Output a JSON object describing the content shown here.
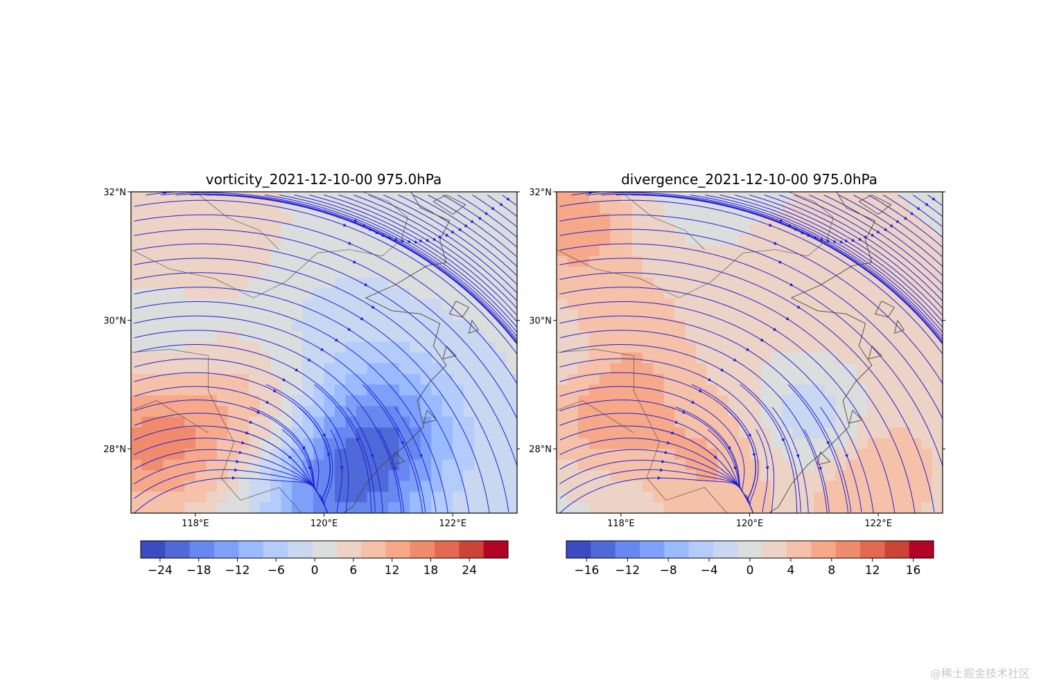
{
  "watermark": "@稀土掘金技术社区",
  "colormap": [
    "#3b4cc0",
    "#4f69d9",
    "#6788ee",
    "#7fa0f9",
    "#9abbff",
    "#b3ccfb",
    "#c9d7f0",
    "#dcdddd",
    "#ecd3c5",
    "#f5c1a9",
    "#f7a889",
    "#f08b6e",
    "#e26952",
    "#cc4437",
    "#b40426"
  ],
  "stream_color": "#1f1fd6",
  "coast_color": "#444444",
  "chart_data": [
    {
      "type": "heatmap",
      "variant": "map-with-streamlines",
      "title": "vorticity_2021-12-10-00  975.0hPa",
      "lon_range": [
        117.0,
        123.0
      ],
      "lat_range": [
        27.0,
        32.0
      ],
      "x_ticks": [
        118,
        120,
        122
      ],
      "x_tick_labels": [
        "118°E",
        "120°E",
        "122°E"
      ],
      "y_ticks": [
        28,
        30,
        32
      ],
      "y_tick_labels": [
        "28°N",
        "30°N",
        "32°N"
      ],
      "colorbar": {
        "range": [
          -27,
          30
        ],
        "ticks": [
          -24,
          -18,
          -12,
          -6,
          0,
          6,
          12,
          18,
          24
        ],
        "tick_labels": [
          "−24",
          "−18",
          "−12",
          "−6",
          "0",
          "6",
          "12",
          "18",
          "24"
        ]
      },
      "features": [
        {
          "lon": 118.0,
          "lat": 30.4,
          "value": 9,
          "spread": 1.6
        },
        {
          "lon": 117.3,
          "lat": 28.1,
          "value": 14,
          "spread": 0.9
        },
        {
          "lon": 119.2,
          "lat": 28.7,
          "value": 10,
          "spread": 0.9
        },
        {
          "lon": 120.2,
          "lat": 27.4,
          "value": -18,
          "spread": 0.9
        },
        {
          "lon": 121.0,
          "lat": 28.3,
          "value": -13,
          "spread": 0.8
        },
        {
          "lon": 119.5,
          "lat": 29.6,
          "value": -9,
          "spread": 1.0
        },
        {
          "lon": 117.5,
          "lat": 29.7,
          "value": -8,
          "spread": 0.8
        }
      ]
    },
    {
      "type": "heatmap",
      "variant": "map-with-streamlines",
      "title": "divergence_2021-12-10-00  975.0hPa",
      "lon_range": [
        117.0,
        123.0
      ],
      "lat_range": [
        27.0,
        32.0
      ],
      "x_ticks": [
        118,
        120,
        122
      ],
      "x_tick_labels": [
        "118°E",
        "120°E",
        "122°E"
      ],
      "y_ticks": [
        28,
        30,
        32
      ],
      "y_tick_labels": [
        "28°N",
        "30°N",
        "32°N"
      ],
      "colorbar": {
        "range": [
          -18,
          18
        ],
        "ticks": [
          -16,
          -12,
          -8,
          -4,
          0,
          4,
          8,
          12,
          16
        ],
        "tick_labels": [
          "−16",
          "−12",
          "−8",
          "−4",
          "0",
          "4",
          "8",
          "12",
          "16"
        ]
      },
      "features": [
        {
          "lon": 117.3,
          "lat": 31.6,
          "value": 7,
          "spread": 0.6
        },
        {
          "lon": 117.8,
          "lat": 29.7,
          "value": 6,
          "spread": 1.0
        },
        {
          "lon": 117.6,
          "lat": 28.6,
          "value": 6,
          "spread": 0.7
        },
        {
          "lon": 119.5,
          "lat": 27.7,
          "value": 6,
          "spread": 0.9
        },
        {
          "lon": 121.8,
          "lat": 27.6,
          "value": 7,
          "spread": 0.9
        },
        {
          "lon": 121.0,
          "lat": 28.3,
          "value": -7,
          "spread": 0.7
        },
        {
          "lon": 117.3,
          "lat": 29.3,
          "value": -5,
          "spread": 0.6
        },
        {
          "lon": 121.5,
          "lat": 30.5,
          "value": 3,
          "spread": 1.2
        }
      ]
    }
  ]
}
